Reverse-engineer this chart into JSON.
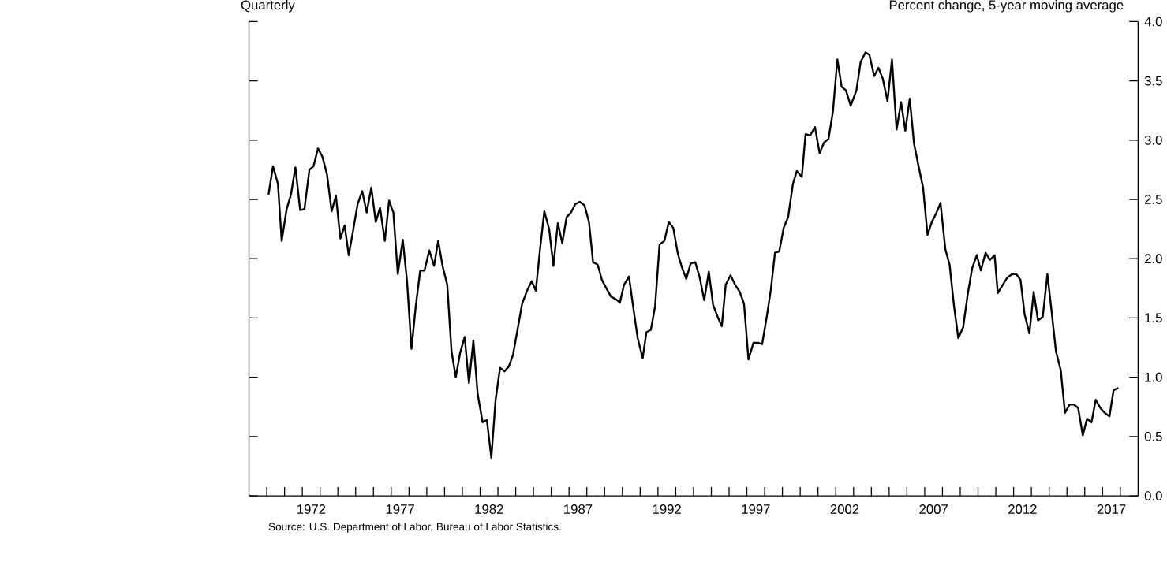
{
  "chart_data": {
    "type": "line",
    "title": "Quarterly",
    "ylabel": "Percent change, 5-year moving average",
    "annotations": [
      "Source:  U.S. Department of Labor, Bureau of Labor Statistics."
    ],
    "color": "#000000",
    "line_style": "solid",
    "marker": "none",
    "grid": false,
    "xlim": [
      1969,
      2019
    ],
    "ylim": [
      0,
      4
    ],
    "yticks": [
      {
        "value": 0,
        "label": "0.0"
      },
      {
        "value": 0.5,
        "label": "0.5"
      },
      {
        "value": 1,
        "label": "1.0"
      },
      {
        "value": 1.5,
        "label": "1.5"
      },
      {
        "value": 2,
        "label": "2.0"
      },
      {
        "value": 2.5,
        "label": "2.5"
      },
      {
        "value": 3,
        "label": "3.0"
      },
      {
        "value": 3.5,
        "label": "3.5"
      },
      {
        "value": 4,
        "label": "4.0"
      }
    ],
    "xticks": [
      {
        "value": 1970,
        "label": null
      },
      {
        "value": 1971,
        "label": null
      },
      {
        "value": 1972,
        "label": null
      },
      {
        "value": 1973,
        "label": null
      },
      {
        "value": 1974,
        "label": null
      },
      {
        "value": 1975,
        "label": null
      },
      {
        "value": 1976,
        "label": null
      },
      {
        "value": 1977,
        "label": null
      },
      {
        "value": 1978,
        "label": null
      },
      {
        "value": 1979,
        "label": null
      },
      {
        "value": 1980,
        "label": null
      },
      {
        "value": 1981,
        "label": null
      },
      {
        "value": 1982,
        "label": null
      },
      {
        "value": 1983,
        "label": null
      },
      {
        "value": 1984,
        "label": null
      },
      {
        "value": 1985,
        "label": null
      },
      {
        "value": 1986,
        "label": null
      },
      {
        "value": 1987,
        "label": null
      },
      {
        "value": 1988,
        "label": null
      },
      {
        "value": 1989,
        "label": null
      },
      {
        "value": 1990,
        "label": null
      },
      {
        "value": 1991,
        "label": null
      },
      {
        "value": 1992,
        "label": null
      },
      {
        "value": 1993,
        "label": null
      },
      {
        "value": 1994,
        "label": null
      },
      {
        "value": 1995,
        "label": null
      },
      {
        "value": 1996,
        "label": null
      },
      {
        "value": 1997,
        "label": null
      },
      {
        "value": 1998,
        "label": null
      },
      {
        "value": 1999,
        "label": null
      },
      {
        "value": 2000,
        "label": null
      },
      {
        "value": 2001,
        "label": null
      },
      {
        "value": 2002,
        "label": null
      },
      {
        "value": 2003,
        "label": null
      },
      {
        "value": 2004,
        "label": null
      },
      {
        "value": 2005,
        "label": null
      },
      {
        "value": 2006,
        "label": null
      },
      {
        "value": 2007,
        "label": null
      },
      {
        "value": 2008,
        "label": null
      },
      {
        "value": 2009,
        "label": null
      },
      {
        "value": 2010,
        "label": null
      },
      {
        "value": 2011,
        "label": null
      },
      {
        "value": 2012,
        "label": null
      },
      {
        "value": 2013,
        "label": null
      },
      {
        "value": 2014,
        "label": null
      },
      {
        "value": 2015,
        "label": null
      },
      {
        "value": 2016,
        "label": null
      },
      {
        "value": 2017,
        "label": null
      },
      {
        "value": 2018,
        "label": null
      },
      {
        "value": 1972.5,
        "label": "1972"
      },
      {
        "value": 1977.5,
        "label": "1977"
      },
      {
        "value": 1982.5,
        "label": "1982"
      },
      {
        "value": 1987.5,
        "label": "1987"
      },
      {
        "value": 1992.5,
        "label": "1992"
      },
      {
        "value": 1997.5,
        "label": "1997"
      },
      {
        "value": 2002.5,
        "label": "2002"
      },
      {
        "value": 2007.5,
        "label": "2007"
      },
      {
        "value": 2012.5,
        "label": "2012"
      },
      {
        "value": 2017.5,
        "label": "2017"
      }
    ],
    "x": [
      1970.1,
      1970.35,
      1970.63,
      1970.84,
      1971.12,
      1971.36,
      1971.61,
      1971.88,
      1972.12,
      1972.4,
      1972.63,
      1972.88,
      1973.13,
      1973.39,
      1973.65,
      1973.89,
      1974.14,
      1974.38,
      1974.61,
      1974.86,
      1975.11,
      1975.37,
      1975.62,
      1975.88,
      1976.13,
      1976.37,
      1976.64,
      1976.88,
      1977.12,
      1977.37,
      1977.65,
      1977.89,
      1978.14,
      1978.38,
      1978.63,
      1978.87,
      1979.14,
      1979.41,
      1979.64,
      1979.9,
      1980.15,
      1980.39,
      1980.63,
      1980.88,
      1981.13,
      1981.37,
      1981.62,
      1981.86,
      1982.14,
      1982.38,
      1982.63,
      1982.87,
      1983.12,
      1983.37,
      1983.61,
      1983.85,
      1984.1,
      1984.36,
      1984.64,
      1984.9,
      1985.13,
      1985.37,
      1985.61,
      1985.88,
      1986.12,
      1986.37,
      1986.62,
      1986.86,
      1987.11,
      1987.35,
      1987.6,
      1987.87,
      1988.12,
      1988.35,
      1988.61,
      1988.85,
      1989.1,
      1989.36,
      1989.61,
      1989.86,
      1990.09,
      1990.37,
      1990.6,
      1990.86,
      1991.14,
      1991.35,
      1991.6,
      1991.84,
      1992.09,
      1992.36,
      1992.61,
      1992.86,
      1993.12,
      1993.34,
      1993.59,
      1993.84,
      1994.1,
      1994.35,
      1994.6,
      1994.86,
      1995.1,
      1995.33,
      1995.59,
      1995.81,
      1996.08,
      1996.34,
      1996.6,
      1996.84,
      1997.09,
      1997.37,
      1997.65,
      1997.86,
      1998.14,
      1998.35,
      1998.58,
      1998.82,
      1999.07,
      1999.32,
      1999.59,
      1999.81,
      2000.09,
      2000.3,
      2000.56,
      2000.83,
      2001.09,
      2001.34,
      2001.59,
      2001.84,
      2002.09,
      2002.33,
      2002.57,
      2002.84,
      2003.16,
      2003.4,
      2003.67,
      2003.89,
      2004.16,
      2004.4,
      2004.64,
      2004.91,
      2005.16,
      2005.42,
      2005.67,
      2005.91,
      2006.16,
      2006.4,
      2006.67,
      2006.91,
      2007.16,
      2007.4,
      2007.64,
      2007.89,
      2008.16,
      2008.4,
      2008.65,
      2008.89,
      2009.16,
      2009.42,
      2009.67,
      2009.93,
      2010.16,
      2010.42,
      2010.67,
      2010.93,
      2011.11,
      2011.35,
      2011.64,
      2011.92,
      2012.15,
      2012.39,
      2012.62,
      2012.89,
      2013.13,
      2013.37,
      2013.64,
      2013.9,
      2014.14,
      2014.38,
      2014.65,
      2014.89,
      2015.15,
      2015.39,
      2015.63,
      2015.89,
      2016.13,
      2016.38,
      2016.62,
      2016.88,
      2017.12,
      2017.39,
      2017.62,
      2017.89
    ],
    "values": [
      2.54,
      2.78,
      2.63,
      2.15,
      2.42,
      2.54,
      2.77,
      2.41,
      2.42,
      2.75,
      2.78,
      2.93,
      2.86,
      2.71,
      2.4,
      2.53,
      2.17,
      2.28,
      2.03,
      2.24,
      2.46,
      2.57,
      2.39,
      2.6,
      2.31,
      2.43,
      2.15,
      2.49,
      2.39,
      1.87,
      2.16,
      1.81,
      1.24,
      1.6,
      1.9,
      1.9,
      2.07,
      1.94,
      2.15,
      1.93,
      1.78,
      1.22,
      1.0,
      1.21,
      1.34,
      0.95,
      1.31,
      0.86,
      0.62,
      0.64,
      0.32,
      0.81,
      1.08,
      1.05,
      1.09,
      1.19,
      1.4,
      1.62,
      1.73,
      1.81,
      1.73,
      2.08,
      2.4,
      2.25,
      1.94,
      2.3,
      2.13,
      2.35,
      2.39,
      2.46,
      2.48,
      2.45,
      2.31,
      1.97,
      1.95,
      1.82,
      1.75,
      1.68,
      1.66,
      1.63,
      1.78,
      1.85,
      1.6,
      1.33,
      1.16,
      1.38,
      1.4,
      1.6,
      2.12,
      2.15,
      2.31,
      2.26,
      2.04,
      1.93,
      1.83,
      1.96,
      1.97,
      1.84,
      1.65,
      1.89,
      1.61,
      1.52,
      1.43,
      1.78,
      1.86,
      1.78,
      1.72,
      1.62,
      1.15,
      1.29,
      1.29,
      1.28,
      1.53,
      1.74,
      2.05,
      2.06,
      2.26,
      2.35,
      2.63,
      2.74,
      2.69,
      3.05,
      3.04,
      3.11,
      2.89,
      2.98,
      3.01,
      3.24,
      3.68,
      3.45,
      3.42,
      3.29,
      3.42,
      3.66,
      3.74,
      3.72,
      3.54,
      3.61,
      3.52,
      3.33,
      3.68,
      3.09,
      3.32,
      3.08,
      3.35,
      2.97,
      2.77,
      2.6,
      2.2,
      2.31,
      2.38,
      2.47,
      2.08,
      1.95,
      1.6,
      1.33,
      1.42,
      1.7,
      1.92,
      2.03,
      1.9,
      2.05,
      1.99,
      2.03,
      1.71,
      1.77,
      1.84,
      1.87,
      1.87,
      1.82,
      1.53,
      1.37,
      1.72,
      1.48,
      1.51,
      1.87,
      1.55,
      1.22,
      1.06,
      0.7,
      0.77,
      0.77,
      0.74,
      0.51,
      0.65,
      0.62,
      0.81,
      0.74,
      0.7,
      0.67,
      0.89,
      0.91
    ]
  }
}
